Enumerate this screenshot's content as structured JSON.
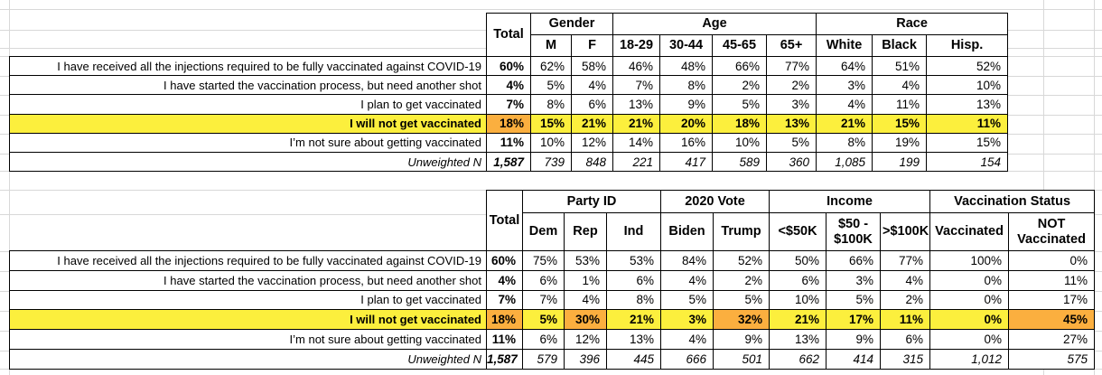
{
  "colors": {
    "highlight_yellow": "#FCEF3D",
    "highlight_orange": "#FBAF3F",
    "grid_line": "#D8D8D8",
    "cell_border": "#000000"
  },
  "table1": {
    "header": {
      "total": "Total",
      "groups": [
        {
          "label": "Gender",
          "span": 2
        },
        {
          "label": "Age",
          "span": 4
        },
        {
          "label": "Race",
          "span": 3
        }
      ],
      "columns": [
        "M",
        "F",
        "18-29",
        "30-44",
        "45-65",
        "65+",
        "White",
        "Black",
        "Hisp."
      ]
    },
    "rows": [
      {
        "label": "I have received all the injections required to be fully vaccinated against COVID-19",
        "values": [
          "60%",
          "62%",
          "58%",
          "46%",
          "48%",
          "66%",
          "77%",
          "64%",
          "51%",
          "52%"
        ]
      },
      {
        "label": "I have started the vaccination process, but need another shot",
        "values": [
          "4%",
          "5%",
          "4%",
          "7%",
          "8%",
          "2%",
          "2%",
          "3%",
          "4%",
          "10%"
        ]
      },
      {
        "label": "I plan to get vaccinated",
        "values": [
          "7%",
          "8%",
          "6%",
          "13%",
          "9%",
          "5%",
          "3%",
          "4%",
          "11%",
          "13%"
        ]
      },
      {
        "label": "I will not get vaccinated",
        "values": [
          "18%",
          "15%",
          "21%",
          "21%",
          "20%",
          "18%",
          "13%",
          "21%",
          "15%",
          "11%"
        ],
        "highlight": true,
        "orange_cells": [
          0
        ]
      },
      {
        "label": "I’m not sure about getting vaccinated",
        "values": [
          "11%",
          "10%",
          "12%",
          "14%",
          "16%",
          "10%",
          "5%",
          "8%",
          "19%",
          "15%"
        ]
      },
      {
        "label": "Unweighted N",
        "values": [
          "1,587",
          "739",
          "848",
          "221",
          "417",
          "589",
          "360",
          "1,085",
          "199",
          "154"
        ],
        "italic": true
      }
    ]
  },
  "table2": {
    "header": {
      "total": "Total",
      "groups": [
        {
          "label": "Party ID",
          "span": 3
        },
        {
          "label": "2020 Vote",
          "span": 2
        },
        {
          "label": "Income",
          "span": 3
        },
        {
          "label": "Vaccination Status",
          "span": 2
        }
      ],
      "columns": [
        "Dem",
        "Rep",
        "Ind",
        "Biden",
        "Trump",
        "<$50K",
        "$50 - $100K",
        ">$100K",
        "Vaccinated",
        "NOT Vaccinated"
      ]
    },
    "rows": [
      {
        "label": "I have received all the injections required to be fully vaccinated against COVID-19",
        "values": [
          "60%",
          "75%",
          "53%",
          "53%",
          "84%",
          "52%",
          "50%",
          "66%",
          "77%",
          "100%",
          "0%"
        ]
      },
      {
        "label": "I have started the vaccination process, but need another shot",
        "values": [
          "4%",
          "6%",
          "1%",
          "6%",
          "4%",
          "2%",
          "6%",
          "3%",
          "4%",
          "0%",
          "11%"
        ]
      },
      {
        "label": "I plan to get vaccinated",
        "values": [
          "7%",
          "7%",
          "4%",
          "8%",
          "5%",
          "5%",
          "10%",
          "5%",
          "2%",
          "0%",
          "17%"
        ]
      },
      {
        "label": "I will not get vaccinated",
        "values": [
          "18%",
          "5%",
          "30%",
          "21%",
          "3%",
          "32%",
          "21%",
          "17%",
          "11%",
          "0%",
          "45%"
        ],
        "highlight": true,
        "orange_cells": [
          0,
          2,
          5,
          10
        ]
      },
      {
        "label": "I’m not sure about getting vaccinated",
        "values": [
          "11%",
          "6%",
          "12%",
          "13%",
          "4%",
          "9%",
          "13%",
          "9%",
          "6%",
          "0%",
          "27%"
        ]
      },
      {
        "label": "Unweighted N",
        "values": [
          "1,587",
          "579",
          "396",
          "445",
          "666",
          "501",
          "662",
          "414",
          "315",
          "1,012",
          "575"
        ],
        "italic": true
      }
    ]
  }
}
